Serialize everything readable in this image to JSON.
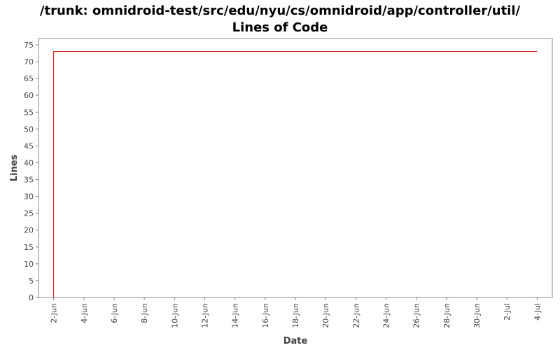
{
  "chart_data": {
    "type": "line",
    "title": "/trunk: omnidroid-test/src/edu/nyu/cs/omnidroid/app/controller/util/",
    "subtitle": "Lines of Code",
    "xlabel": "Date",
    "ylabel": "Lines",
    "ylim": [
      0,
      75
    ],
    "yticks": [
      0,
      5,
      10,
      15,
      20,
      25,
      30,
      35,
      40,
      45,
      50,
      55,
      60,
      65,
      70,
      75
    ],
    "xlim": [
      "2009-06-01",
      "2009-07-05"
    ],
    "xticks": [
      {
        "date": "2009-06-02",
        "label": "2-Jun"
      },
      {
        "date": "2009-06-04",
        "label": "4-Jun"
      },
      {
        "date": "2009-06-06",
        "label": "6-Jun"
      },
      {
        "date": "2009-06-08",
        "label": "8-Jun"
      },
      {
        "date": "2009-06-10",
        "label": "10-Jun"
      },
      {
        "date": "2009-06-12",
        "label": "12-Jun"
      },
      {
        "date": "2009-06-14",
        "label": "14-Jun"
      },
      {
        "date": "2009-06-16",
        "label": "16-Jun"
      },
      {
        "date": "2009-06-18",
        "label": "18-Jun"
      },
      {
        "date": "2009-06-20",
        "label": "20-Jun"
      },
      {
        "date": "2009-06-22",
        "label": "22-Jun"
      },
      {
        "date": "2009-06-24",
        "label": "24-Jun"
      },
      {
        "date": "2009-06-26",
        "label": "26-Jun"
      },
      {
        "date": "2009-06-28",
        "label": "28-Jun"
      },
      {
        "date": "2009-06-30",
        "label": "30-Jun"
      },
      {
        "date": "2009-07-02",
        "label": "2-Jul"
      },
      {
        "date": "2009-07-04",
        "label": "4-Jul"
      }
    ],
    "series": [
      {
        "color": "#dd0000",
        "step": true,
        "points": [
          {
            "x": "2009-06-02",
            "y": 0
          },
          {
            "x": "2009-06-02",
            "y": 73
          },
          {
            "x": "2009-07-04",
            "y": 73
          }
        ]
      }
    ],
    "grid": false,
    "legend": "none"
  }
}
